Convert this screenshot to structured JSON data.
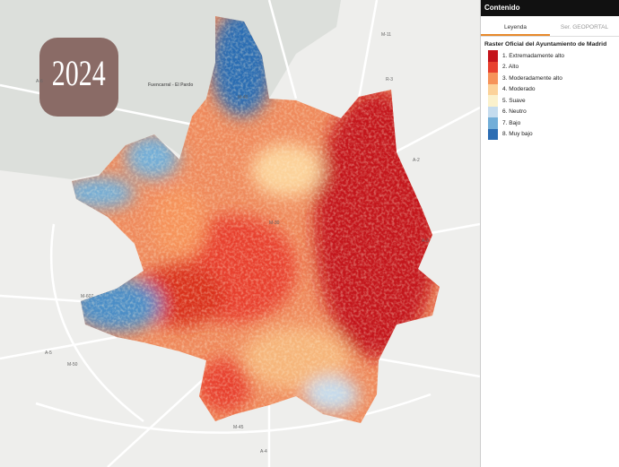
{
  "map": {
    "year_badge": "2024",
    "labels": [
      "Fuencarral - El Pardo",
      "M-40",
      "M-30",
      "A-6",
      "M-607",
      "M-50",
      "M-45",
      "A-3",
      "A-2",
      "A-4",
      "A-5",
      "M-11",
      "R-3"
    ]
  },
  "panel": {
    "title": "Contenido",
    "tabs": [
      "Leyenda",
      "Ser. GEOPORTAL"
    ],
    "layer": "Raster Oficial del Ayuntamiento de Madrid",
    "legend": [
      {
        "label": "1. Extremadamente alto",
        "color": "#c4141b"
      },
      {
        "label": "2. Alto",
        "color": "#e8412f"
      },
      {
        "label": "3. Moderadamente alto",
        "color": "#f6935a"
      },
      {
        "label": "4. Moderado",
        "color": "#fcd29a"
      },
      {
        "label": "5. Suave",
        "color": "#fbf1cc"
      },
      {
        "label": "6. Neutro",
        "color": "#c5dcee"
      },
      {
        "label": "7. Bajo",
        "color": "#72aed8"
      },
      {
        "label": "8. Muy bajo",
        "color": "#2c6db3"
      }
    ]
  }
}
